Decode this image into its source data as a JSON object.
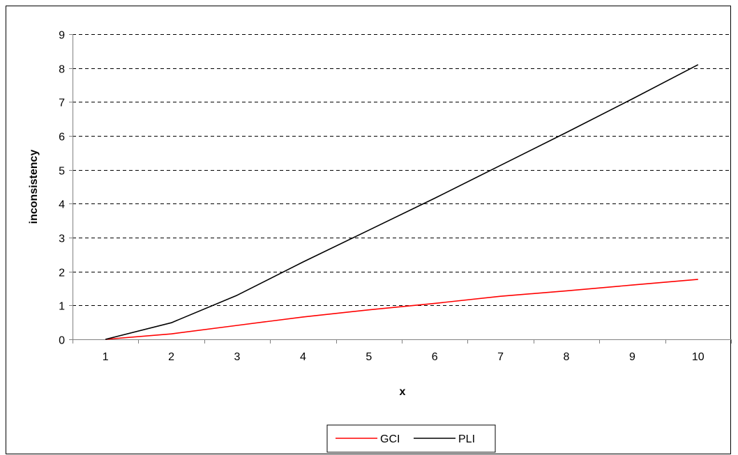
{
  "chart_data": {
    "type": "line",
    "title": "",
    "xlabel": "x",
    "ylabel": "inconsistency",
    "x": [
      1,
      2,
      3,
      4,
      5,
      6,
      7,
      8,
      9,
      10
    ],
    "categories": [
      "1",
      "2",
      "3",
      "4",
      "5",
      "6",
      "7",
      "8",
      "9",
      "10"
    ],
    "ylim": [
      0,
      9
    ],
    "yticks": [
      0,
      1,
      2,
      3,
      4,
      5,
      6,
      7,
      8,
      9
    ],
    "grid": "horizontal dashed",
    "legend_position": "bottom",
    "series": [
      {
        "name": "GCI",
        "color": "#ff0000",
        "values": [
          0.0,
          0.16,
          0.41,
          0.66,
          0.87,
          1.06,
          1.27,
          1.43,
          1.6,
          1.77
        ]
      },
      {
        "name": "PLI",
        "color": "#000000",
        "values": [
          0.0,
          0.49,
          1.3,
          2.28,
          3.22,
          4.16,
          5.13,
          6.1,
          7.09,
          8.1
        ]
      }
    ]
  }
}
